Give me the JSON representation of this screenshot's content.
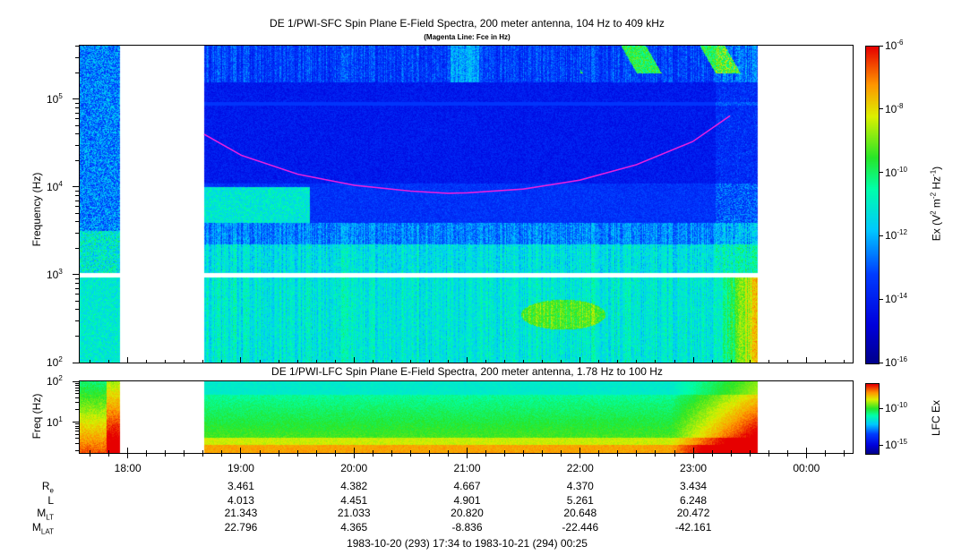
{
  "chart_data": [
    {
      "type": "heatmap",
      "title": "DE 1/PWI-SFC  Spin Plane E-Field Spectra, 200 meter antenna, 104 Hz to 409 kHz",
      "subtitle": "(Magenta Line: Fce in Hz)",
      "ylabel": "Frequency (Hz)",
      "y_scale": "log",
      "ylim": [
        100,
        409000
      ],
      "y_ticks": [
        {
          "base": "10",
          "exp": "2"
        },
        {
          "base": "10",
          "exp": "3"
        },
        {
          "base": "10",
          "exp": "4"
        },
        {
          "base": "10",
          "exp": "5"
        }
      ],
      "colorbar": {
        "label_main": "Ex (V",
        "label_sup1": "2",
        "label_mid": " m",
        "label_sup2": "-2",
        "label_mid2": " Hz",
        "label_sup3": "-1",
        "label_end": ")",
        "scale": "log",
        "range": [
          1e-16,
          1e-06
        ],
        "ticks": [
          {
            "base": "10",
            "exp": "-6"
          },
          {
            "base": "10",
            "exp": "-8"
          },
          {
            "base": "10",
            "exp": "-10"
          },
          {
            "base": "10",
            "exp": "-12"
          },
          {
            "base": "10",
            "exp": "-14"
          },
          {
            "base": "10",
            "exp": "-16"
          }
        ]
      },
      "fce_line": {
        "name": "Fce",
        "color": "#e020e0",
        "x_hours": [
          18.67,
          19.0,
          19.5,
          20.0,
          20.5,
          20.83,
          21.0,
          21.5,
          22.0,
          22.5,
          23.0,
          23.33
        ],
        "y_hz": [
          40000,
          23000,
          14000,
          10500,
          9000,
          8500,
          8600,
          9500,
          12000,
          18000,
          33000,
          65000
        ]
      },
      "data_gap_hours": [
        17.92,
        18.67
      ]
    },
    {
      "type": "heatmap",
      "title": "DE 1/PWI-LFC  Spin Plane E-Field Spectra, 200 meter antenna, 1.78 Hz to 100 Hz",
      "ylabel": "Freq (Hz)",
      "y_scale": "log",
      "ylim": [
        1.78,
        100
      ],
      "y_ticks": [
        {
          "base": "10",
          "exp": "1"
        },
        {
          "base": "10",
          "exp": "2"
        }
      ],
      "colorbar": {
        "label": "LFC Ex",
        "scale": "log",
        "ticks": [
          {
            "base": "10",
            "exp": "-10"
          },
          {
            "base": "10",
            "exp": "-15"
          }
        ]
      },
      "data_gap_hours": [
        17.92,
        18.67
      ]
    }
  ],
  "time_axis": {
    "range_hours": [
      17.567,
      24.417
    ],
    "ticks": [
      {
        "hour": 18,
        "label": "18:00"
      },
      {
        "hour": 19,
        "label": "19:00"
      },
      {
        "hour": 20,
        "label": "20:00"
      },
      {
        "hour": 21,
        "label": "21:00"
      },
      {
        "hour": 22,
        "label": "22:00"
      },
      {
        "hour": 23,
        "label": "23:00"
      },
      {
        "hour": 24,
        "label": "00:00"
      }
    ],
    "range_label": "1983-10-20 (293) 17:34 to 1983-10-21 (294) 00:25"
  },
  "ephemeris": [
    {
      "label": "R",
      "sub": "e",
      "values": [
        "3.461",
        "4.382",
        "4.667",
        "4.370",
        "3.434"
      ]
    },
    {
      "label": "L",
      "sub": "",
      "values": [
        "4.013",
        "4.451",
        "4.901",
        "5.261",
        "6.248"
      ]
    },
    {
      "label": "M",
      "sub": "LT",
      "values": [
        "21.343",
        "21.033",
        "20.820",
        "20.648",
        "20.472"
      ]
    },
    {
      "label": "M",
      "sub": "LAT",
      "values": [
        "22.796",
        "4.365",
        "-8.836",
        "-22.446",
        "-42.161"
      ]
    }
  ]
}
